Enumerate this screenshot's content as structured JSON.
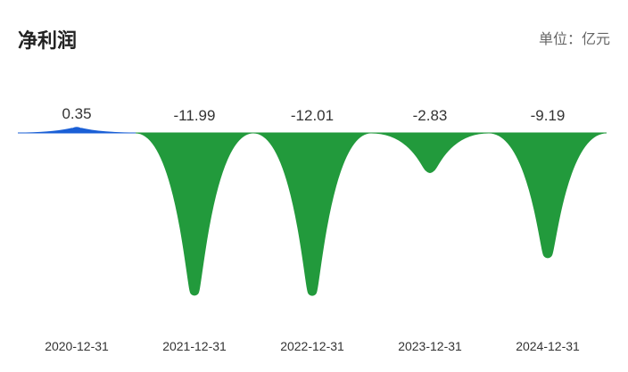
{
  "header": {
    "title": "净利润",
    "unit": "单位：亿元"
  },
  "colors": {
    "positive": "#1a5fd6",
    "negative": "#229a3c",
    "text": "#333333"
  },
  "chart_data": {
    "type": "area",
    "title": "净利润",
    "unit": "单位：亿元",
    "categories": [
      "2020-12-31",
      "2021-12-31",
      "2022-12-31",
      "2023-12-31",
      "2024-12-31"
    ],
    "values": [
      0.35,
      -11.99,
      -12.01,
      -2.83,
      -9.19
    ],
    "value_labels": [
      "0.35",
      "-11.99",
      "-12.01",
      "-2.83",
      "-9.19"
    ],
    "ylim": [
      -12.01,
      0.35
    ],
    "grid": false,
    "legend": "none"
  }
}
